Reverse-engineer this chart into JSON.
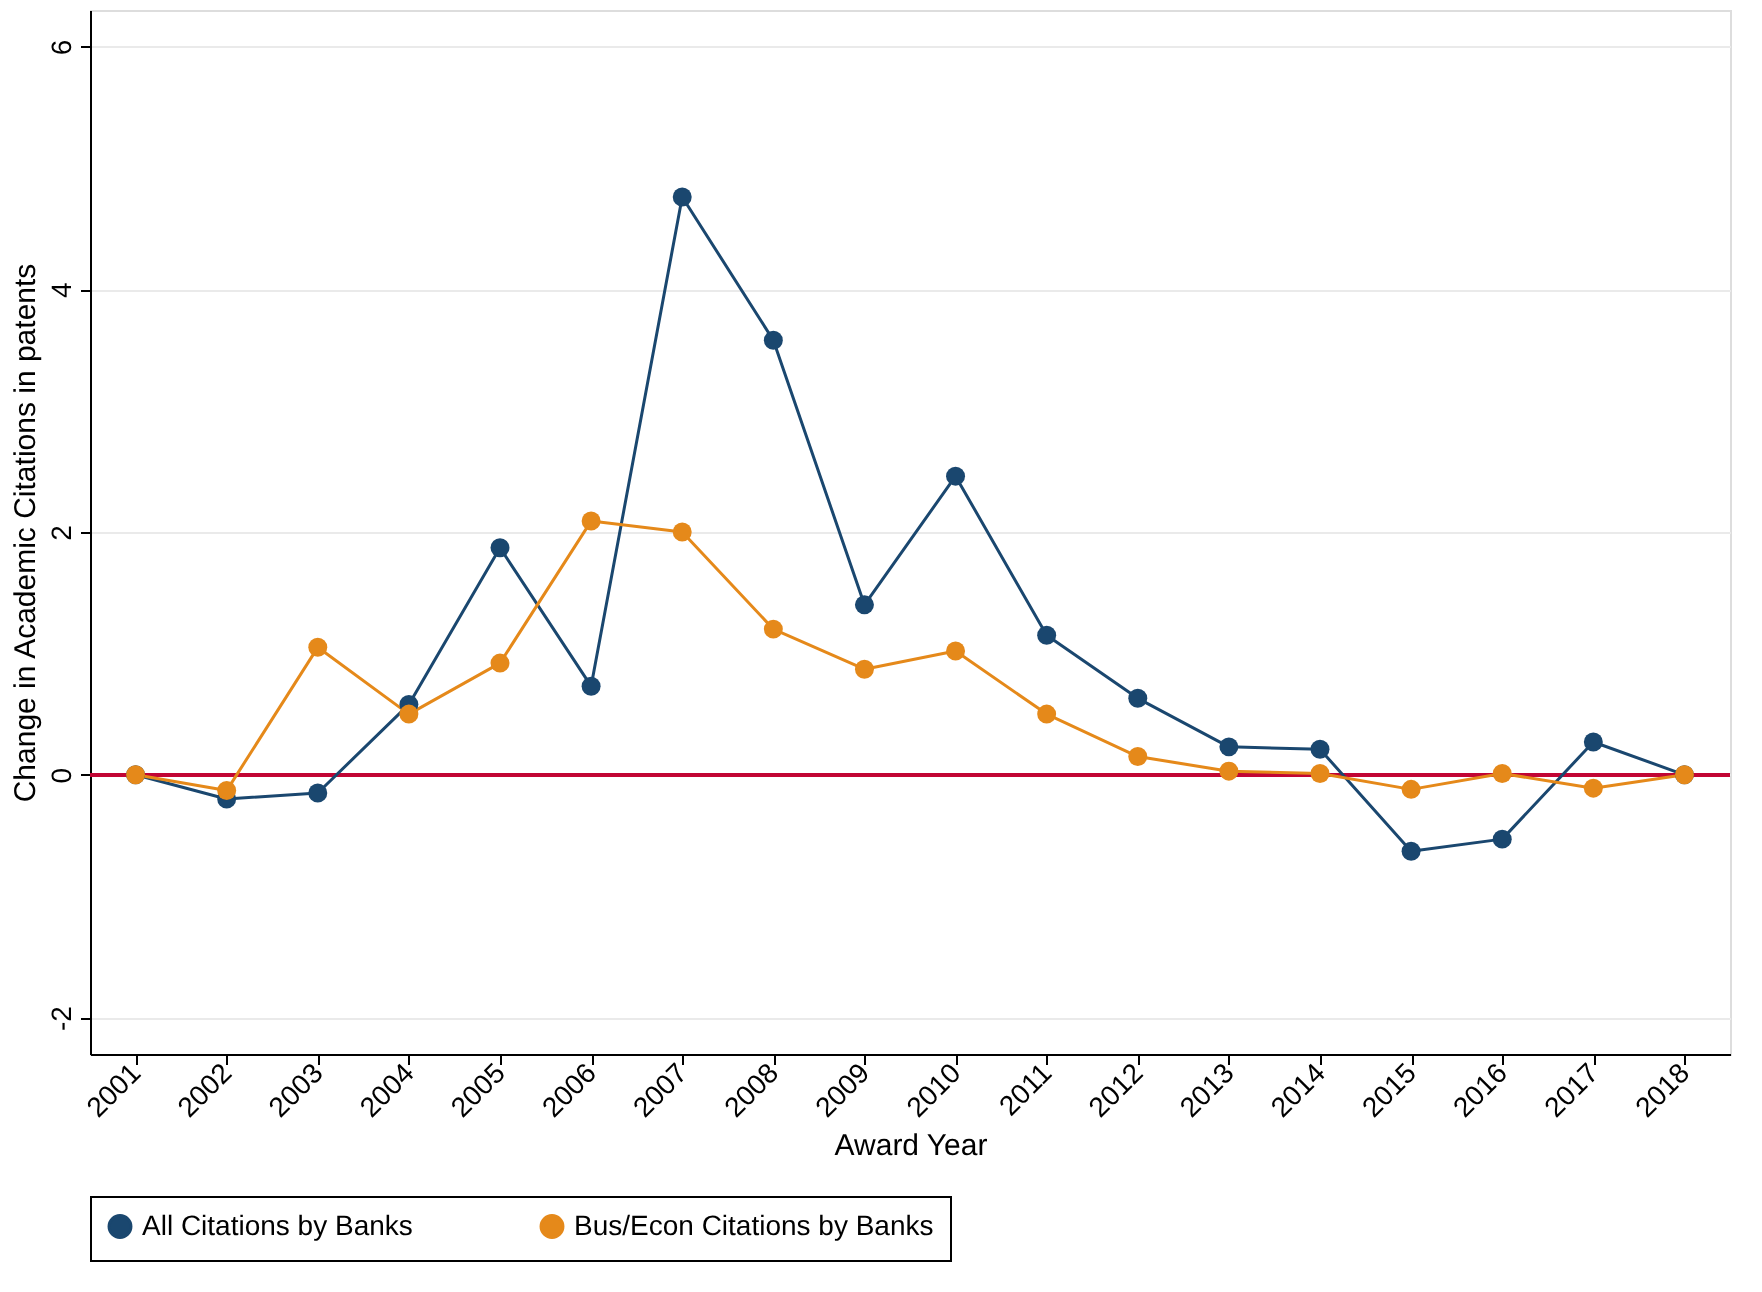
{
  "chart_data": {
    "type": "line",
    "xlabel": "Award Year",
    "ylabel": "Change in Academic Citations in patents",
    "categories": [
      "2001",
      "2002",
      "2003",
      "2004",
      "2005",
      "2006",
      "2007",
      "2008",
      "2009",
      "2010",
      "2011",
      "2012",
      "2013",
      "2014",
      "2015",
      "2016",
      "2017",
      "2018"
    ],
    "series": [
      {
        "name": "All Citations by Banks",
        "color": "#1a476f",
        "values": [
          0,
          -0.2,
          -0.15,
          0.58,
          1.87,
          0.73,
          4.76,
          3.58,
          1.4,
          2.46,
          1.15,
          0.63,
          0.23,
          0.21,
          -0.63,
          -0.53,
          0.27,
          0
        ]
      },
      {
        "name": "Bus/Econ Citations by Banks",
        "color": "#e5891a",
        "values": [
          0,
          -0.13,
          1.05,
          0.5,
          0.92,
          2.09,
          2.0,
          1.2,
          0.87,
          1.02,
          0.5,
          0.15,
          0.03,
          0.01,
          -0.12,
          0.01,
          -0.11,
          0
        ]
      }
    ],
    "ylim": [
      -2.3,
      6.3
    ],
    "yticks": [
      -2,
      0,
      2,
      4,
      6
    ],
    "grid": "y",
    "legend": "bottom",
    "marker": "circle",
    "line_style": "solid",
    "ref_lines": [
      {
        "axis": "y",
        "value": 0,
        "color": "#c10534"
      }
    ]
  }
}
